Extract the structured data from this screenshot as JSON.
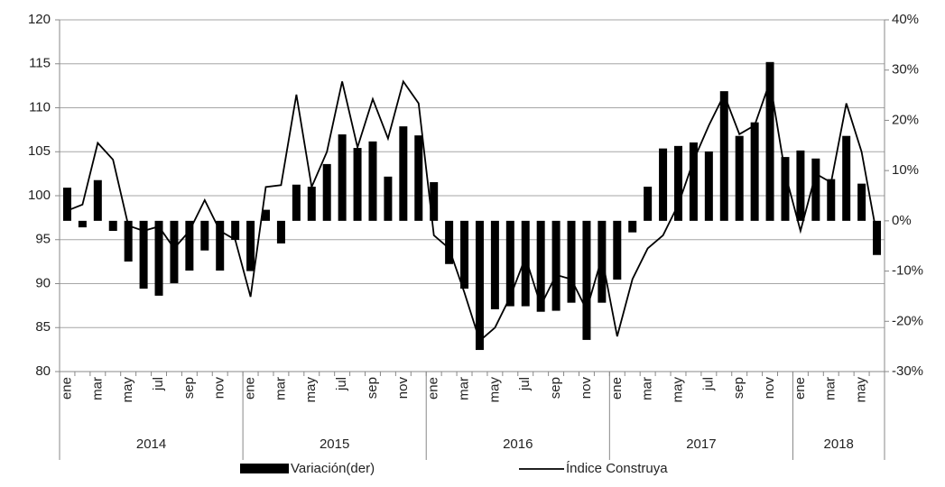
{
  "chart_data": {
    "type": "bar-line",
    "categories": [
      "ene",
      null,
      "mar",
      null,
      "may",
      null,
      "jul",
      null,
      "sep",
      null,
      "nov",
      null,
      "ene",
      null,
      "mar",
      null,
      "may",
      null,
      "jul",
      null,
      "sep",
      null,
      "nov",
      null,
      "ene",
      null,
      "mar",
      null,
      "may",
      null,
      "jul",
      null,
      "sep",
      null,
      "nov",
      null,
      "ene",
      null,
      "mar",
      null,
      "may",
      null,
      "jul",
      null,
      "sep",
      null,
      "nov",
      null,
      "ene",
      null,
      "mar",
      null,
      "may",
      null
    ],
    "groups": [
      "2014",
      "2015",
      "2016",
      "2017",
      "2018"
    ],
    "series": [
      {
        "name": "Variación(der)",
        "type": "bar",
        "axis": "y2",
        "color": "#000000",
        "values": [
          6.6,
          -1.3,
          8.1,
          -2,
          -8.1,
          -13.5,
          -14.9,
          -12.4,
          -9.9,
          -5.9,
          -9.9,
          -3.8,
          -10,
          2.2,
          -4.5,
          7.2,
          6.8,
          11.3,
          17.2,
          14.5,
          15.8,
          8.8,
          18.8,
          17,
          7.7,
          -8.6,
          -13.5,
          -25.7,
          -17.6,
          -17,
          -17,
          -18.1,
          -17.9,
          -16.3,
          -23.7,
          -16.3,
          -11.7,
          -2.3,
          6.8,
          14.4,
          14.9,
          15.6,
          13.8,
          25.8,
          16.9,
          19.6,
          31.6,
          12.7,
          14,
          12.4,
          8.3,
          16.9,
          7.4,
          -6.8
        ]
      },
      {
        "name": "Índice Construya",
        "type": "line",
        "axis": "y",
        "color": "#000000",
        "values": [
          98.3,
          99,
          106,
          104.1,
          96.6,
          96,
          96.5,
          94,
          96,
          99.5,
          96,
          95,
          88.5,
          101,
          101.2,
          111.5,
          101,
          105,
          113,
          105.5,
          111,
          106.5,
          113,
          110.5,
          95.5,
          94,
          89,
          83.5,
          85,
          88.5,
          93,
          87.5,
          91,
          90.5,
          87,
          93,
          84,
          90.5,
          94,
          95.5,
          99,
          104,
          108,
          111.5,
          107,
          108,
          113,
          102.5,
          96,
          102.5,
          101.5,
          110.5,
          105,
          95.5
        ]
      }
    ],
    "ylim": [
      80,
      120
    ],
    "yticks": [
      80,
      85,
      90,
      95,
      100,
      105,
      110,
      115,
      120
    ],
    "y2lim": [
      -30,
      40
    ],
    "y2ticks": [
      {
        "value": -30,
        "label": "-30%"
      },
      {
        "value": -20,
        "label": "-20%"
      },
      {
        "value": -10,
        "label": "-10%"
      },
      {
        "value": 0,
        "label": "0%"
      },
      {
        "value": 10,
        "label": "10%"
      },
      {
        "value": 20,
        "label": "20%"
      },
      {
        "value": 30,
        "label": "30%"
      },
      {
        "value": 40,
        "label": "40%"
      }
    ],
    "grid": true,
    "legend": "bottom"
  }
}
